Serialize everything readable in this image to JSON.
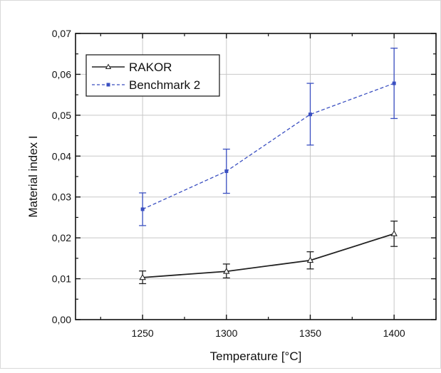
{
  "chart_data": {
    "type": "line",
    "title": "",
    "xlabel": "Temperature [°C]",
    "ylabel": "Material index I",
    "x": [
      1250,
      1300,
      1350,
      1400
    ],
    "x_tick_labels": [
      "1250",
      "1300",
      "1350",
      "1400"
    ],
    "xlim": [
      1210,
      1425
    ],
    "ylim": [
      0,
      0.07
    ],
    "y_ticks": [
      0,
      0.01,
      0.02,
      0.03,
      0.04,
      0.05,
      0.06,
      0.07
    ],
    "y_tick_labels": [
      "0,00",
      "0,01",
      "0,02",
      "0,03",
      "0,04",
      "0,05",
      "0,06",
      "0,07"
    ],
    "grid": true,
    "legend_position": "top-left",
    "series": [
      {
        "name": "RAKOR",
        "values": [
          0.0103,
          0.0118,
          0.0145,
          0.021
        ],
        "error_low": [
          0.0088,
          0.0102,
          0.0124,
          0.0179
        ],
        "error_high": [
          0.0119,
          0.0136,
          0.0166,
          0.0241
        ],
        "color": "#222222",
        "line_style": "solid",
        "marker": "open-triangle"
      },
      {
        "name": "Benchmark 2",
        "values": [
          0.027,
          0.0363,
          0.0502,
          0.0578
        ],
        "error_low": [
          0.023,
          0.0309,
          0.0427,
          0.0492
        ],
        "error_high": [
          0.031,
          0.0417,
          0.0578,
          0.0664
        ],
        "color": "#3a4fc1",
        "line_style": "dashed",
        "marker": "filled-square"
      }
    ]
  }
}
